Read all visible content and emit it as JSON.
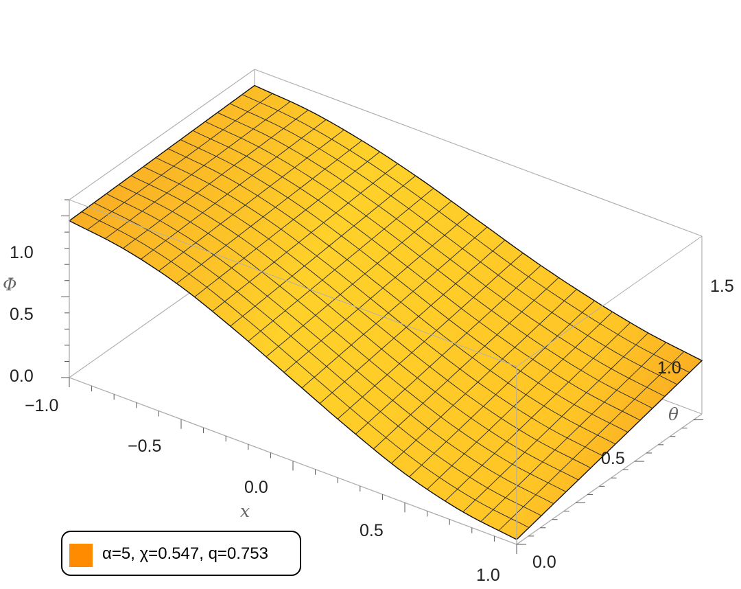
{
  "chart_data": {
    "type": "surface",
    "x": {
      "label": "x",
      "range": [
        -1.0,
        1.0
      ],
      "ticks": [
        -1.0,
        -0.5,
        0.0,
        0.5,
        1.0
      ],
      "tick_labels": [
        "−1.0",
        "−0.5",
        "0.0",
        "0.5",
        "1.0"
      ]
    },
    "theta": {
      "label": "θ",
      "range": [
        0.0,
        1.5708
      ],
      "ticks": [
        0.0,
        0.5,
        1.0,
        1.5
      ],
      "tick_labels": [
        "0.0",
        "0.5",
        "1.0",
        "1.5"
      ]
    },
    "z": {
      "label": "Φ",
      "range": [
        0.0,
        1.1
      ],
      "ticks": [
        0.0,
        0.5,
        1.0
      ],
      "tick_labels": [
        "0.0",
        "0.5",
        "1.0"
      ]
    },
    "surface": {
      "x_at_theta0": [
        -1.0,
        -0.75,
        -0.5,
        -0.25,
        0.0,
        0.25,
        0.5,
        0.75,
        1.0
      ],
      "phi_at_theta0": [
        0.97,
        0.92,
        0.82,
        0.67,
        0.5,
        0.33,
        0.18,
        0.08,
        0.03
      ],
      "x_at_theta_max": [
        -1.0,
        -0.75,
        -0.5,
        -0.25,
        0.0,
        0.25,
        0.5,
        0.75,
        1.0
      ],
      "phi_at_theta_max": [
        1.0,
        0.97,
        0.9,
        0.8,
        0.68,
        0.56,
        0.46,
        0.38,
        0.33
      ],
      "mesh_lines": {
        "x": 25,
        "theta": 15
      }
    },
    "legend": {
      "placement": "bottom-left",
      "entries": [
        {
          "label": "α=5, χ=0.547, q=0.753",
          "color": "#ff8c00"
        }
      ]
    },
    "colors": {
      "surface_light": "#ffd128",
      "surface_dark": "#f7a11f",
      "mesh": "#333333",
      "box": "#b0b0b0"
    }
  }
}
